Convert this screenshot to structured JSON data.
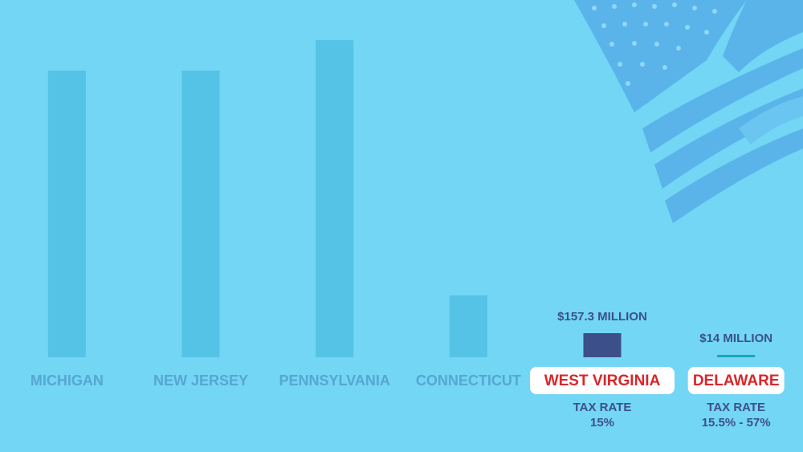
{
  "chart_data": {
    "type": "bar",
    "categories": [
      "MICHIGAN",
      "NEW JERSEY",
      "PENNSYLVANIA",
      "CONNECTICUT",
      "WEST VIRGINIA",
      "DELAWARE"
    ],
    "values": [
      1872,
      1872,
      2071,
      404,
      157.3,
      14
    ],
    "value_labels": [
      null,
      null,
      null,
      null,
      "$157.3 MILLION",
      "$14 MILLION"
    ],
    "colors": [
      "#55c3e6",
      "#55c3e6",
      "#55c3e6",
      "#55c3e6",
      "#3d4f8a",
      "#1aa6b8"
    ],
    "highlight": [
      false,
      false,
      false,
      false,
      true,
      true
    ],
    "tax_rate_title": "TAX RATE",
    "tax_rates": [
      null,
      null,
      null,
      null,
      "15%",
      "15.5% - 57%"
    ]
  }
}
